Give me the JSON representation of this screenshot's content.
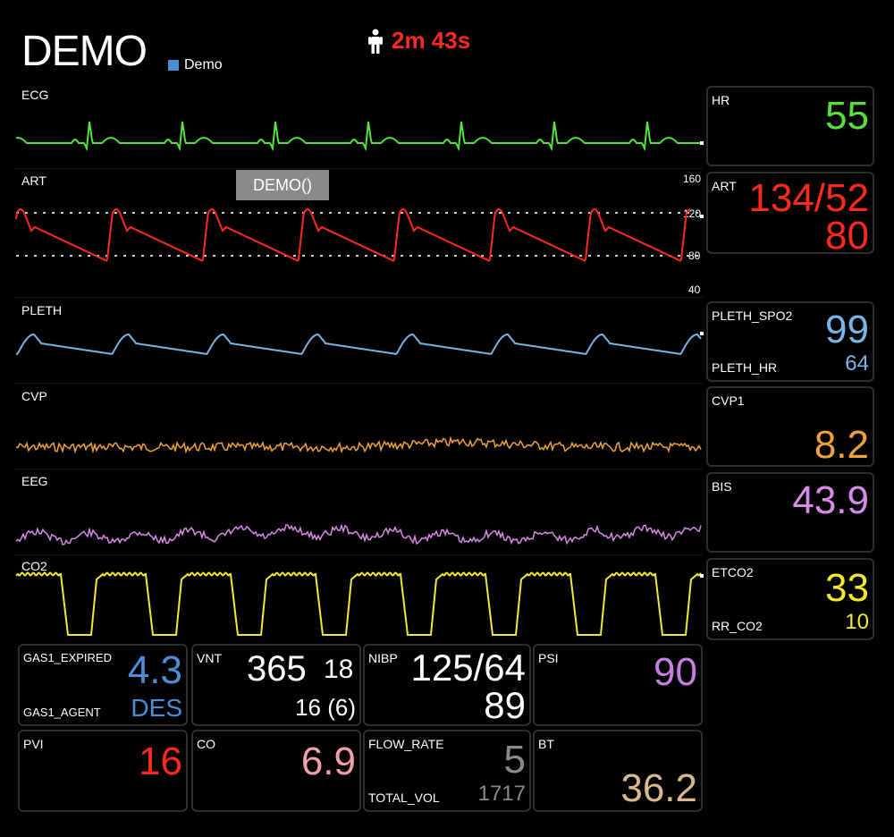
{
  "header": {
    "title": "DEMO",
    "legend_label": "Demo",
    "elapsed": "2m 43s"
  },
  "tooltip": "DEMO()",
  "colors": {
    "ecg": "#55e03a",
    "art": "#ff2a1f",
    "pleth": "#78b6e6",
    "cvp": "#f0a23a",
    "eeg": "#d88ae8",
    "co2": "#f2ea2b",
    "gas": "#4a8ed8",
    "psi": "#c87ee0",
    "co": "#f2a0a8",
    "bt": "#d8b88c",
    "flow": "#8a8a8a"
  },
  "waves": {
    "ecg": "ECG",
    "art": "ART",
    "pleth": "PLETH",
    "cvp": "CVP",
    "eeg": "EEG",
    "co2": "CO2"
  },
  "art_scale": {
    "t160": "160",
    "t120": "120",
    "t80": "80",
    "t40": "40"
  },
  "numerics": {
    "hr": {
      "label": "HR",
      "value": "55"
    },
    "art": {
      "label": "ART",
      "value": "134/52",
      "mean": "80"
    },
    "spo2": {
      "label": "PLETH_SPO2",
      "value": "99",
      "label2": "PLETH_HR",
      "value2": "64"
    },
    "cvp": {
      "label": "CVP1",
      "value": "8.2"
    },
    "bis": {
      "label": "BIS",
      "value": "43.9"
    },
    "etco2": {
      "label": "ETCO2",
      "value": "33",
      "label2": "RR_CO2",
      "value2": "10"
    }
  },
  "bottom": {
    "gas": {
      "label": "GAS1_EXPIRED",
      "value": "4.3",
      "label2": "GAS1_AGENT",
      "value2": "DES"
    },
    "vnt": {
      "label": "VNT",
      "value": "365",
      "value_b": "18",
      "value2": "16 (6)"
    },
    "nibp": {
      "label": "NIBP",
      "value": "125/64",
      "value2": "89"
    },
    "psi": {
      "label": "PSI",
      "value": "90"
    },
    "pvi": {
      "label": "PVI",
      "value": "16"
    },
    "co": {
      "label": "CO",
      "value": "6.9"
    },
    "flow": {
      "label": "FLOW_RATE",
      "value": "5",
      "label2": "TOTAL_VOL",
      "value2": "1717"
    },
    "bt": {
      "label": "BT",
      "value": "36.2"
    }
  }
}
